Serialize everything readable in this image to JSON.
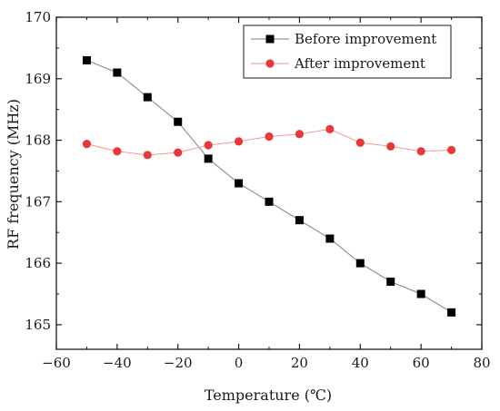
{
  "chart_data": {
    "type": "line",
    "xlabel": "Temperature (℃)",
    "ylabel": "RF frequency (MHz)",
    "xlim": [
      -60,
      80
    ],
    "ylim": [
      164.6,
      170
    ],
    "x_ticks": [
      -60,
      -40,
      -20,
      0,
      20,
      40,
      60,
      80
    ],
    "y_ticks": [
      165,
      166,
      167,
      168,
      169,
      170
    ],
    "grid": false,
    "legend_position": "top-right",
    "series": [
      {
        "name": "Before improvement",
        "marker": "square",
        "color": "#000000",
        "line_color": "#7f7f7f",
        "x": [
          -50,
          -40,
          -30,
          -20,
          -10,
          0,
          10,
          20,
          30,
          40,
          50,
          60,
          70
        ],
        "y": [
          169.3,
          169.1,
          168.7,
          168.3,
          167.7,
          167.3,
          167.0,
          166.7,
          166.4,
          166.0,
          165.7,
          165.5,
          165.2
        ]
      },
      {
        "name": "After improvement",
        "marker": "circle",
        "color": "#e8393a",
        "line_color": "#f19a9a",
        "x": [
          -50,
          -40,
          -30,
          -20,
          -10,
          0,
          10,
          20,
          30,
          40,
          50,
          60,
          70
        ],
        "y": [
          167.94,
          167.82,
          167.76,
          167.8,
          167.92,
          167.98,
          168.06,
          168.1,
          168.18,
          167.96,
          167.9,
          167.82,
          167.84
        ]
      }
    ]
  }
}
